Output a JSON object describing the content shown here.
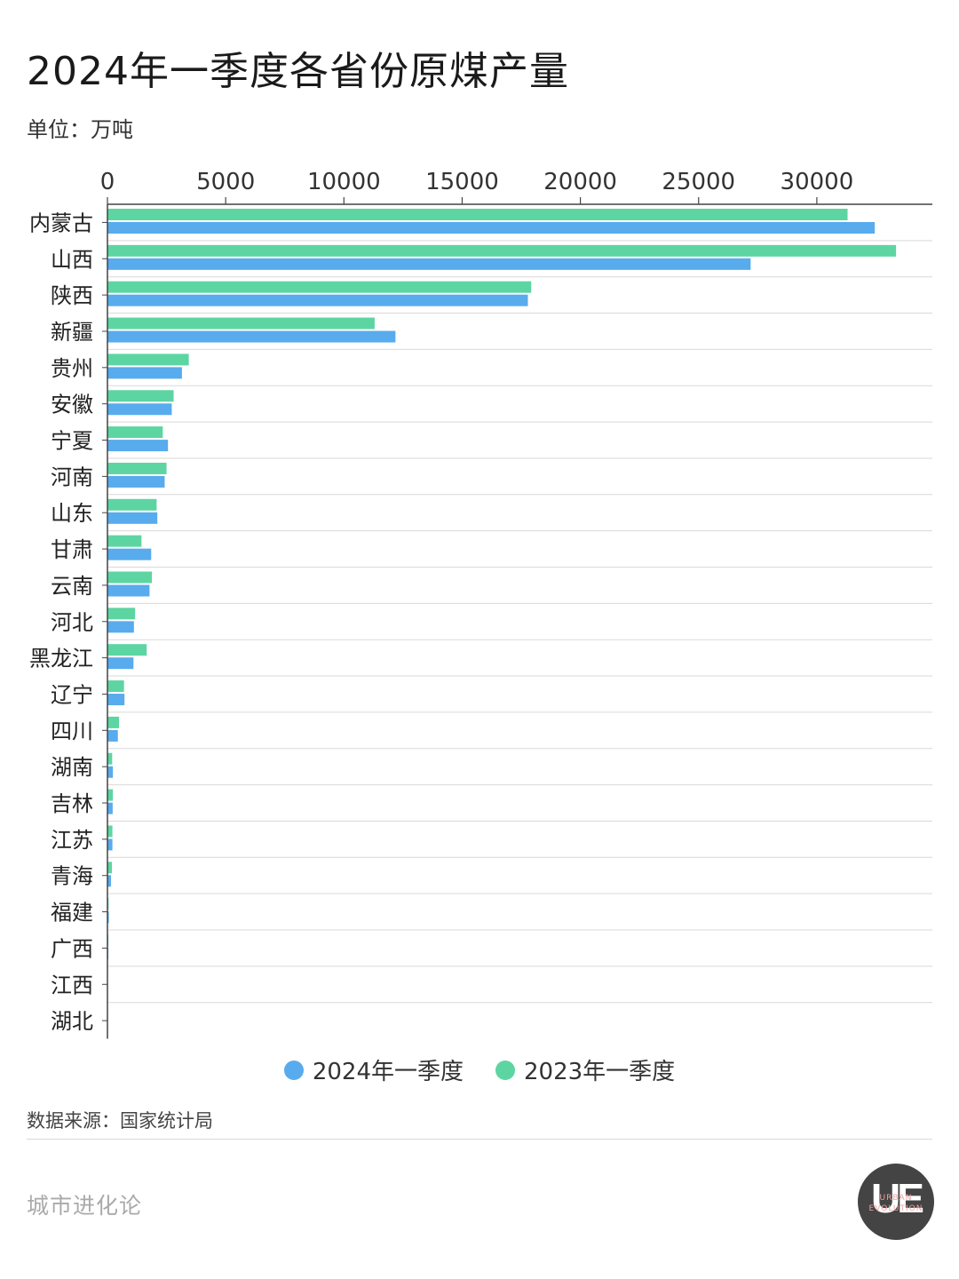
{
  "title": "2024年一季度各省份原煤产量",
  "unit": "单位：万吨",
  "source": "数据来源：国家统计局",
  "brand": "城市进化论",
  "logo": {
    "letters": "UE",
    "line1": "URBAN",
    "line2": "EVOLUTION"
  },
  "colors": {
    "s2024": "#58abed",
    "s2023": "#5dd5a2",
    "axis": "#444444",
    "grid": "#d9d9d9"
  },
  "chart_data": {
    "type": "bar",
    "orientation": "horizontal",
    "title": "2024年一季度各省份原煤产量",
    "xlabel": "",
    "ylabel": "",
    "unit": "万吨",
    "xlim": [
      0,
      35000
    ],
    "xticks": [
      0,
      5000,
      10000,
      15000,
      20000,
      25000,
      30000
    ],
    "categories": [
      "内蒙古",
      "山西",
      "陕西",
      "新疆",
      "贵州",
      "安徽",
      "宁夏",
      "河南",
      "山东",
      "甘肃",
      "云南",
      "河北",
      "黑龙江",
      "辽宁",
      "四川",
      "湖南",
      "吉林",
      "江苏",
      "青海",
      "福建",
      "广西",
      "江西",
      "湖北"
    ],
    "series": [
      {
        "name": "2024年一季度",
        "values": [
          32450,
          27200,
          17780,
          12180,
          3150,
          2720,
          2560,
          2420,
          2110,
          1850,
          1780,
          1120,
          1100,
          720,
          440,
          230,
          220,
          210,
          150,
          60,
          40,
          20,
          0
        ]
      },
      {
        "name": "2023年一季度",
        "values": [
          31300,
          33350,
          17920,
          11300,
          3440,
          2800,
          2340,
          2500,
          2080,
          1440,
          1880,
          1170,
          1660,
          700,
          490,
          200,
          230,
          210,
          190,
          50,
          40,
          20,
          0
        ]
      }
    ],
    "legend": [
      "2024年一季度",
      "2023年一季度"
    ],
    "legend_position": "bottom"
  }
}
